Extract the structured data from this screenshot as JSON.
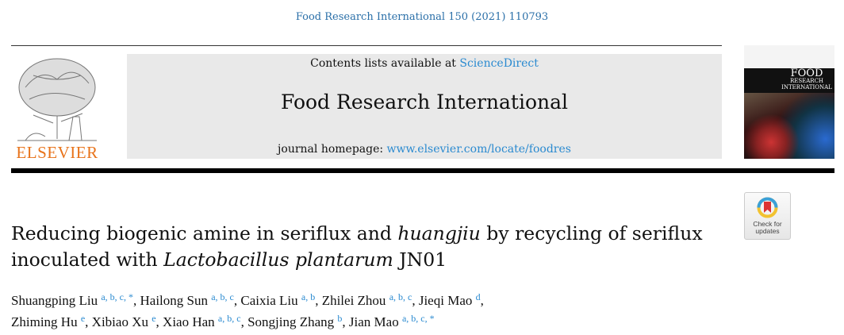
{
  "header": {
    "journal_ref": "Food Research International 150 (2021) 110793"
  },
  "publisher": {
    "logo_text": "ELSEVIER"
  },
  "banner": {
    "contents_prefix": "Contents lists available at ",
    "contents_link": "ScienceDirect",
    "journal_title": "Food Research International",
    "homepage_prefix": "journal homepage: ",
    "homepage_link": "www.elsevier.com/locate/foodres"
  },
  "cover": {
    "title_line1": "FOOD",
    "title_line2": "RESEARCH",
    "title_line3": "INTERNATIONAL"
  },
  "check_updates": {
    "line1": "Check for",
    "line2": "updates"
  },
  "article": {
    "title_parts": [
      "Reducing biogenic amine in seriflux and ",
      "huangjiu",
      " by recycling of seriflux",
      "inoculated with ",
      "Lactobacillus plantarum",
      " JN01"
    ],
    "authors": [
      {
        "name": "Shuangping Liu",
        "aff": "a, b, c, *"
      },
      {
        "name": "Hailong Sun",
        "aff": "a, b, c"
      },
      {
        "name": "Caixia Liu",
        "aff": "a, b"
      },
      {
        "name": "Zhilei Zhou",
        "aff": "a, b, c"
      },
      {
        "name": "Jieqi Mao",
        "aff": "d"
      },
      {
        "name": "Zhiming Hu",
        "aff": "e"
      },
      {
        "name": "Xibiao Xu",
        "aff": "e"
      },
      {
        "name": "Xiao Han",
        "aff": "a, b, c"
      },
      {
        "name": "Songjing Zhang",
        "aff": "b"
      },
      {
        "name": "Jian Mao",
        "aff": "a, b, c, *"
      }
    ],
    "separator": ", "
  },
  "colors": {
    "link": "#2a8ad0",
    "elsevier_orange": "#e8731a",
    "banner_bg": "#e9e9e9"
  }
}
